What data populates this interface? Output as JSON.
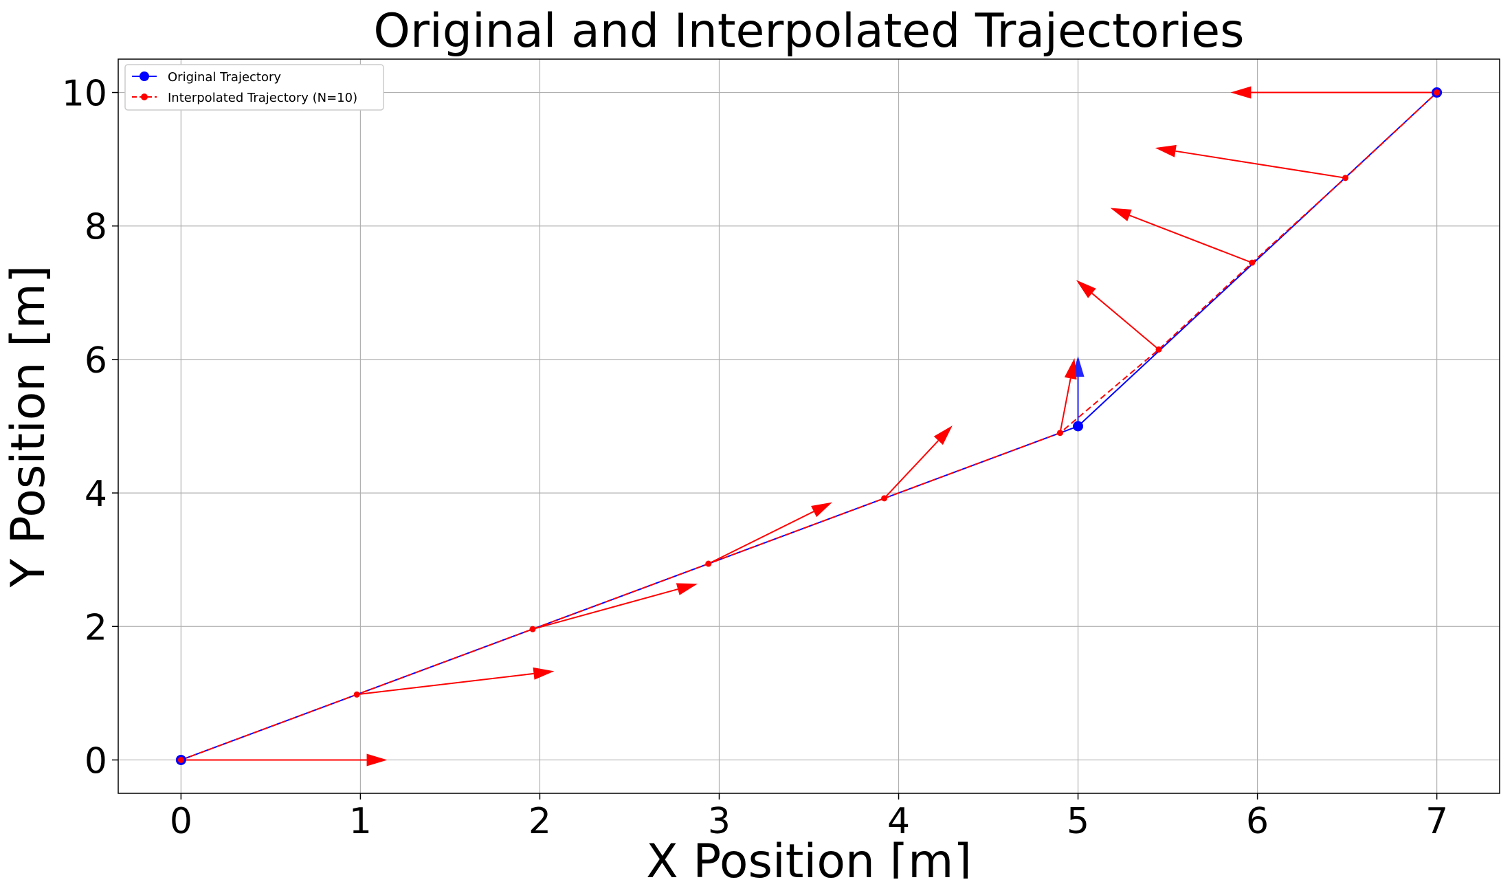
{
  "chart_data": {
    "type": "line",
    "title": "Original and Interpolated Trajectories",
    "xlabel": "X Position [m]",
    "ylabel": "Y Position [m]",
    "xlim": [
      -0.35,
      7.35
    ],
    "ylim": [
      -0.5,
      10.5
    ],
    "xticks": [
      0,
      1,
      2,
      3,
      4,
      5,
      6,
      7
    ],
    "yticks": [
      0,
      2,
      4,
      6,
      8,
      10
    ],
    "grid": true,
    "legend_position": "top-left",
    "series": [
      {
        "name": "Original Trajectory",
        "color": "#0000ff",
        "linestyle": "solid",
        "marker": "circle",
        "x": [
          0,
          5,
          7
        ],
        "y": [
          0,
          5,
          10
        ],
        "arrows": [
          {
            "x": 5,
            "y": 5,
            "dx": 0,
            "dy": 1.05
          }
        ]
      },
      {
        "name": "Interpolated Trajectory (N=10)",
        "color": "#ff0000",
        "linestyle": "dashed",
        "marker": "circle",
        "x": [
          0,
          0.98,
          1.96,
          2.94,
          3.92,
          4.9,
          5.45,
          5.97,
          6.49,
          7
        ],
        "y": [
          0,
          0.98,
          1.96,
          2.94,
          3.92,
          4.9,
          6.15,
          7.45,
          8.72,
          10
        ],
        "arrows": [
          {
            "x": 0,
            "y": 0,
            "dx": 1.15,
            "dy": 0
          },
          {
            "x": 0.98,
            "y": 0.98,
            "dx": 1.1,
            "dy": 0.35
          },
          {
            "x": 1.96,
            "y": 1.96,
            "dx": 0.92,
            "dy": 0.68
          },
          {
            "x": 2.94,
            "y": 2.94,
            "dx": 0.69,
            "dy": 0.92
          },
          {
            "x": 3.92,
            "y": 3.92,
            "dx": 0.38,
            "dy": 1.09
          },
          {
            "x": 4.9,
            "y": 4.9,
            "dx": 0.08,
            "dy": 1.12
          },
          {
            "x": 5.45,
            "y": 6.15,
            "dx": -0.46,
            "dy": 1.04
          },
          {
            "x": 5.97,
            "y": 7.45,
            "dx": -0.79,
            "dy": 0.82
          },
          {
            "x": 6.49,
            "y": 8.72,
            "dx": -1.06,
            "dy": 0.45
          },
          {
            "x": 7,
            "y": 10,
            "dx": -1.15,
            "dy": 0
          }
        ]
      }
    ]
  }
}
